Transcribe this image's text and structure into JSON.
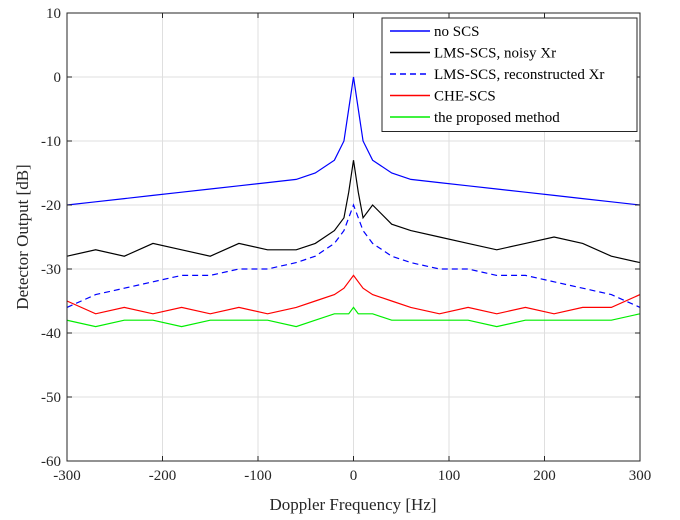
{
  "chart_data": {
    "type": "line",
    "title": "",
    "xlabel": "Doppler Frequency [Hz]",
    "ylabel": "Detector Output [dB]",
    "xlim": [
      -300,
      300
    ],
    "ylim": [
      -60,
      10
    ],
    "xticks": [
      -300,
      -200,
      -100,
      0,
      100,
      200,
      300
    ],
    "yticks": [
      -60,
      -50,
      -40,
      -30,
      -20,
      -10,
      0,
      10
    ],
    "grid": true,
    "legend_position": "top-right",
    "series": [
      {
        "name": "no SCS",
        "color": "#0000ff",
        "dash": "solid",
        "x": [
          -300,
          -270,
          -240,
          -210,
          -180,
          -150,
          -120,
          -90,
          -60,
          -40,
          -20,
          -10,
          -5,
          0,
          5,
          10,
          20,
          40,
          60,
          90,
          120,
          150,
          180,
          210,
          240,
          270,
          300
        ],
        "y": [
          -20,
          -19.5,
          -19,
          -18.5,
          -18,
          -17.5,
          -17,
          -16.5,
          -16,
          -15,
          -13,
          -10,
          -5,
          0,
          -5,
          -10,
          -13,
          -15,
          -16,
          -16.5,
          -17,
          -17.5,
          -18,
          -18.5,
          -19,
          -19.5,
          -20
        ]
      },
      {
        "name": "LMS-SCS, noisy Xr",
        "color": "#000000",
        "dash": "solid",
        "x": [
          -300,
          -270,
          -240,
          -210,
          -180,
          -150,
          -120,
          -90,
          -60,
          -40,
          -20,
          -10,
          -5,
          0,
          5,
          10,
          20,
          40,
          60,
          90,
          120,
          150,
          180,
          210,
          240,
          270,
          300
        ],
        "y": [
          -28,
          -27,
          -28,
          -26,
          -27,
          -28,
          -26,
          -27,
          -27,
          -26,
          -24,
          -22,
          -18,
          -13,
          -18,
          -22,
          -20,
          -23,
          -24,
          -25,
          -26,
          -27,
          -26,
          -25,
          -26,
          -28,
          -29
        ]
      },
      {
        "name": "LMS-SCS, reconstructed Xr",
        "color": "#0000ff",
        "dash": "dashed",
        "x": [
          -300,
          -270,
          -240,
          -210,
          -180,
          -150,
          -120,
          -90,
          -60,
          -40,
          -20,
          -10,
          -5,
          0,
          5,
          10,
          20,
          40,
          60,
          90,
          120,
          150,
          180,
          210,
          240,
          270,
          300
        ],
        "y": [
          -36,
          -34,
          -33,
          -32,
          -31,
          -31,
          -30,
          -30,
          -29,
          -28,
          -26,
          -24,
          -22,
          -20,
          -22,
          -24,
          -26,
          -28,
          -29,
          -30,
          -30,
          -31,
          -31,
          -32,
          -33,
          -34,
          -36
        ]
      },
      {
        "name": "CHE-SCS",
        "color": "#ff0000",
        "dash": "solid",
        "x": [
          -300,
          -270,
          -240,
          -210,
          -180,
          -150,
          -120,
          -90,
          -60,
          -40,
          -20,
          -10,
          -5,
          0,
          5,
          10,
          20,
          40,
          60,
          90,
          120,
          150,
          180,
          210,
          240,
          270,
          300
        ],
        "y": [
          -35,
          -37,
          -36,
          -37,
          -36,
          -37,
          -36,
          -37,
          -36,
          -35,
          -34,
          -33,
          -32,
          -31,
          -32,
          -33,
          -34,
          -35,
          -36,
          -37,
          -36,
          -37,
          -36,
          -37,
          -36,
          -36,
          -34
        ]
      },
      {
        "name": "the proposed method",
        "color": "#00ee00",
        "dash": "solid",
        "x": [
          -300,
          -270,
          -240,
          -210,
          -180,
          -150,
          -120,
          -90,
          -60,
          -40,
          -20,
          -10,
          -5,
          0,
          5,
          10,
          20,
          40,
          60,
          90,
          120,
          150,
          180,
          210,
          240,
          270,
          300
        ],
        "y": [
          -38,
          -39,
          -38,
          -38,
          -39,
          -38,
          -38,
          -38,
          -39,
          -38,
          -37,
          -37,
          -37,
          -36,
          -37,
          -37,
          -37,
          -38,
          -38,
          -38,
          -38,
          -39,
          -38,
          -38,
          -38,
          -38,
          -37
        ]
      }
    ]
  }
}
